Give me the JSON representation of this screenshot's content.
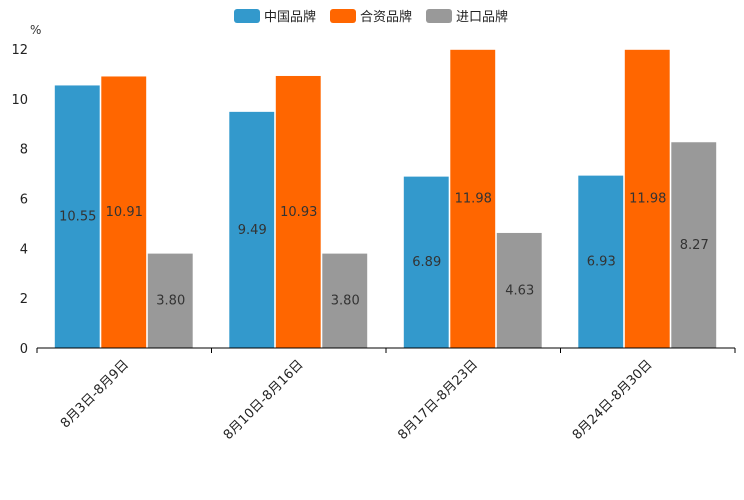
{
  "chart_data": {
    "type": "bar",
    "title": "",
    "xlabel": "",
    "ylabel": "%",
    "ylim": [
      0,
      12
    ],
    "yticks": [
      0,
      2,
      4,
      6,
      8,
      10,
      12
    ],
    "grid": false,
    "legend_position": "top-center",
    "categories": [
      "8月3日-8月9日",
      "8月10日-8月16日",
      "8月17日-8月23日",
      "8月24日-8月30日"
    ],
    "series": [
      {
        "name": "中国品牌",
        "color": "#3399cc",
        "values": [
          10.55,
          9.49,
          6.89,
          6.93
        ],
        "labels": [
          "10.55",
          "9.49",
          "6.89",
          "6.93"
        ]
      },
      {
        "name": "合资品牌",
        "color": "#ff6600",
        "values": [
          10.91,
          10.93,
          11.98,
          11.98
        ],
        "labels": [
          "10.91",
          "10.93",
          "11.98",
          "11.98"
        ]
      },
      {
        "name": "进口品牌",
        "color": "#999999",
        "values": [
          3.8,
          3.8,
          4.63,
          8.27
        ],
        "labels": [
          "3.80",
          "3.80",
          "4.63",
          "8.27"
        ]
      }
    ]
  }
}
